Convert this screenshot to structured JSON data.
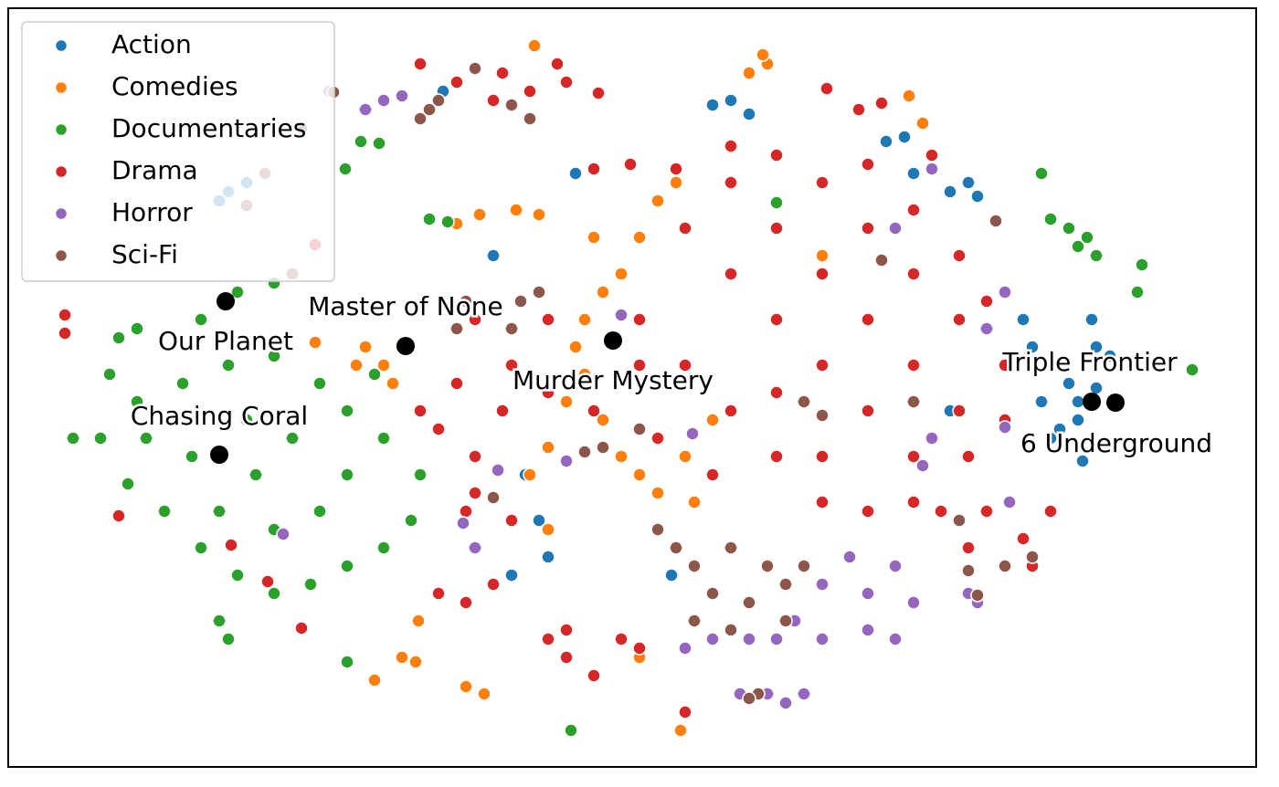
{
  "chart_data": {
    "type": "scatter",
    "xlim": [
      9,
      1375
    ],
    "ylim": [
      840,
      9
    ],
    "legend": "upper left",
    "series": [
      {
        "name": "Action",
        "color": "#1f77b4",
        "x": [
          1180,
          1040,
          1060,
          990,
          780,
          800,
          820,
          1200,
          1215,
          1160,
          1185,
          1140,
          1120,
          1195,
          630,
          540,
          575,
          590,
          600,
          560,
          735,
          1040,
          1000,
          1070,
          970,
          1180,
          1150,
          1200,
          1170,
          1130,
          485,
          240,
          250,
          270
        ],
        "y": [
          440,
          210,
          200,
          150,
          115,
          110,
          125,
          380,
          390,
          470,
          505,
          440,
          350,
          350,
          190,
          280,
          520,
          570,
          610,
          630,
          630,
          450,
          190,
          215,
          155,
          460,
          480,
          425,
          420,
          380,
          100,
          220,
          210,
          200
        ]
      },
      {
        "name": "Comedies",
        "color": "#ff7f0e",
        "x": [
          440,
          420,
          400,
          390,
          430,
          660,
          640,
          630,
          680,
          700,
          720,
          740,
          650,
          660,
          700,
          680,
          720,
          760,
          580,
          600,
          820,
          840,
          835,
          410,
          440,
          455,
          510,
          530,
          745,
          345,
          600,
          640,
          620,
          500,
          525,
          565,
          590,
          585,
          1010,
          995,
          458,
          700,
          750,
          780,
          900
        ],
        "y": [
          380,
          400,
          380,
          400,
          420,
          320,
          350,
          380,
          300,
          260,
          220,
          200,
          260,
          460,
          520,
          500,
          540,
          550,
          520,
          580,
          80,
          70,
          60,
          745,
          720,
          725,
          752,
          760,
          800,
          375,
          490,
          410,
          440,
          245,
          235,
          230,
          235,
          50,
          135,
          105,
          680,
          720,
          500,
          460,
          280
        ]
      },
      {
        "name": "Documentaries",
        "color": "#2ca02c",
        "x": [
          120,
          150,
          200,
          250,
          300,
          350,
          380,
          420,
          460,
          450,
          420,
          380,
          340,
          300,
          260,
          220,
          180,
          140,
          110,
          160,
          210,
          280,
          320,
          380,
          300,
          240,
          200,
          270,
          350,
          220,
          260,
          300,
          410,
          80,
          130,
          150,
          240,
          250,
          380,
          625,
          1140,
          1150,
          1170,
          1190,
          1200,
          1180,
          1250,
          1245,
          1305,
          470,
          490,
          378,
          415,
          395,
          850
        ],
        "y": [
          410,
          440,
          420,
          400,
          390,
          420,
          450,
          480,
          520,
          570,
          600,
          620,
          640,
          650,
          630,
          600,
          560,
          530,
          480,
          480,
          500,
          520,
          480,
          520,
          580,
          560,
          460,
          460,
          560,
          350,
          320,
          310,
          410,
          480,
          370,
          360,
          680,
          700,
          725,
          800,
          190,
          240,
          250,
          260,
          280,
          270,
          290,
          320,
          405,
          240,
          243,
          185,
          157,
          155,
          222
        ]
      },
      {
        "name": "Drama",
        "color": "#d62728",
        "x": [
          800,
          850,
          900,
          950,
          1000,
          900,
          850,
          800,
          750,
          700,
          750,
          800,
          850,
          900,
          950,
          1000,
          1050,
          1050,
          1000,
          950,
          900,
          850,
          800,
          950,
          1000,
          1050,
          1080,
          1100,
          1100,
          1060,
          1000,
          950,
          900,
          850,
          780,
          720,
          700,
          650,
          600,
          550,
          500,
          460,
          480,
          520,
          560,
          600,
          520,
          1030,
          1080,
          1120,
          1130,
          1060,
          1150,
          480,
          510,
          540,
          600,
          620,
          650,
          680,
          700,
          620,
          460,
          500,
          550,
          580,
          620,
          610,
          540,
          655,
          905,
          965,
          940,
          1020,
          520,
          560,
          510,
          330,
          71,
          71,
          130,
          253,
          293,
          750,
          690,
          650,
          740,
          345
        ],
        "y": [
          300,
          350,
          400,
          450,
          500,
          550,
          500,
          450,
          400,
          350,
          250,
          200,
          250,
          300,
          350,
          400,
          450,
          350,
          300,
          250,
          200,
          170,
          160,
          180,
          230,
          280,
          330,
          400,
          460,
          500,
          550,
          560,
          500,
          430,
          520,
          480,
          400,
          450,
          430,
          450,
          420,
          450,
          470,
          500,
          400,
          350,
          350,
          560,
          560,
          590,
          620,
          600,
          560,
          650,
          660,
          640,
          700,
          720,
          740,
          700,
          710,
          690,
          70,
          90,
          80,
          100,
          90,
          70,
          110,
          102,
          97,
          113,
          120,
          170,
          540,
          570,
          560,
          688,
          345,
          365,
          565,
          597,
          637,
          780,
          180,
          185,
          185,
          268
        ]
      },
      {
        "name": "Horror",
        "color": "#9467bd",
        "x": [
          900,
          950,
          1000,
          980,
          930,
          870,
          820,
          780,
          750,
          800,
          850,
          900,
          950,
          980,
          880,
          860,
          840,
          810,
          420,
          400,
          440,
          360,
          1070,
          1060,
          1020,
          1010,
          1100,
          1080,
          310,
          545,
          507,
          520,
          620,
          1020,
          758,
          980,
          680,
          1100,
          1105
        ],
        "y": [
          640,
          650,
          660,
          620,
          610,
          680,
          700,
          700,
          710,
          690,
          700,
          700,
          690,
          700,
          760,
          770,
          760,
          760,
          110,
          120,
          105,
          100,
          660,
          650,
          480,
          510,
          320,
          360,
          585,
          515,
          573,
          600,
          505,
          185,
          475,
          250,
          345,
          468,
          550
        ]
      },
      {
        "name": "Sci-Fi",
        "color": "#8c564b",
        "x": [
          760,
          800,
          840,
          780,
          820,
          860,
          740,
          720,
          800,
          760,
          880,
          860,
          510,
          540,
          570,
          590,
          560,
          500,
          470,
          460,
          480,
          520,
          580,
          560,
          830,
          820,
          1070,
          1130,
          1100,
          1060,
          880,
          900,
          660,
          640,
          700,
          1090,
          270,
          290,
          320,
          365,
          330,
          965,
          1000,
          1050,
          540
        ],
        "y": [
          620,
          600,
          620,
          650,
          660,
          640,
          600,
          580,
          690,
          680,
          620,
          680,
          330,
          340,
          330,
          320,
          360,
          360,
          120,
          130,
          110,
          75,
          130,
          115,
          760,
          765,
          652,
          610,
          620,
          625,
          440,
          455,
          490,
          495,
          470,
          242,
          225,
          190,
          300,
          101,
          140,
          285,
          440,
          570,
          545
        ]
      }
    ],
    "annotations": [
      {
        "text": "Our Planet",
        "x": 247,
        "y": 330
      },
      {
        "text": "Master of None",
        "x": 444,
        "y": 379
      },
      {
        "text": "Murder Mystery",
        "x": 671,
        "y": 373
      },
      {
        "text": "Chasing Coral",
        "x": 240,
        "y": 498
      },
      {
        "text": "Triple Frontier",
        "x": 1195,
        "y": 440
      },
      {
        "text": "6 Underground",
        "x": 1221,
        "y": 441
      }
    ]
  }
}
